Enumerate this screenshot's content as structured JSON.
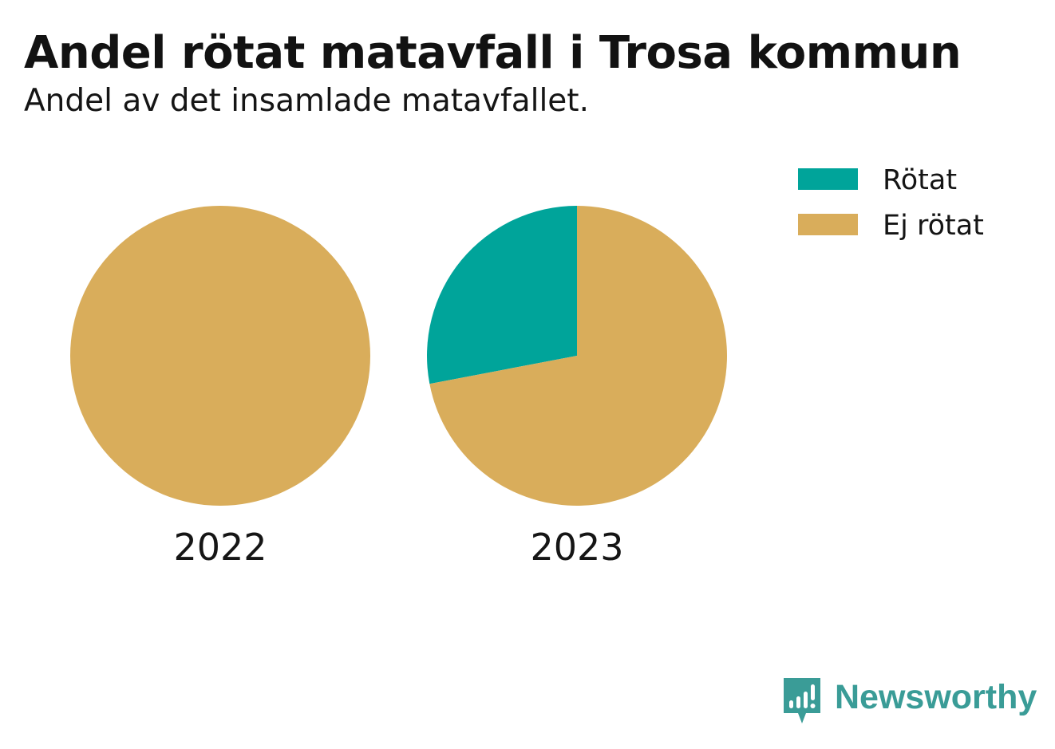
{
  "header": {
    "title": "Andel rötat matavfall i Trosa kommun",
    "subtitle": "Andel av det insamlade matavfallet."
  },
  "chart_data": {
    "type": "pie",
    "title": "Andel rötat matavfall i Trosa kommun",
    "subtitle": "Andel av det insamlade matavfallet.",
    "legend_position": "top-right",
    "legend": [
      "Rötat",
      "Ej rötat"
    ],
    "colors": {
      "Rötat": "#00a49a",
      "Ej rötat": "#d9ad5b"
    },
    "pies": [
      {
        "label": "2022",
        "slices": [
          {
            "name": "Rötat",
            "value": 0
          },
          {
            "name": "Ej rötat",
            "value": 100
          }
        ]
      },
      {
        "label": "2023",
        "slices": [
          {
            "name": "Rötat",
            "value": 28
          },
          {
            "name": "Ej rötat",
            "value": 72
          }
        ]
      }
    ]
  },
  "brand": {
    "name": "Newsworthy",
    "icon": "newsworthy-logo-icon",
    "color": "#3a9c97"
  }
}
